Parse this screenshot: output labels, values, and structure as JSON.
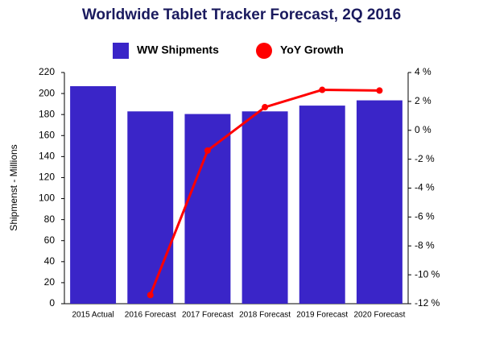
{
  "chart_data": {
    "type": "combo",
    "title": "Worldwide Tablet Tracker Forecast, 2Q 2016",
    "y_label": "Shipmenst - Millions",
    "categories": [
      "2015 Actual",
      "2016 Forecast",
      "2017 Forecast",
      "2018 Forecast",
      "2019 Forecast",
      "2020 Forecast"
    ],
    "series": [
      {
        "name": "WW Shipments",
        "type": "bar",
        "color": "#3a25c8",
        "values": [
          207,
          183,
          180.5,
          183,
          188.5,
          193.5
        ]
      },
      {
        "name": "YoY Growth",
        "type": "line",
        "color": "#ff0000",
        "axis": "y2",
        "values": [
          null,
          -11.4,
          -1.4,
          1.6,
          2.8,
          2.75
        ]
      }
    ],
    "ylim": [
      0,
      220
    ],
    "yticks": [
      0,
      20,
      40,
      60,
      80,
      100,
      120,
      140,
      160,
      180,
      200,
      220
    ],
    "y2lim": [
      -12,
      4
    ],
    "y2ticks": [
      {
        "value": -12,
        "label": "-12 %"
      },
      {
        "value": -10,
        "label": "-10 %"
      },
      {
        "value": -8,
        "label": "-8 %"
      },
      {
        "value": -6,
        "label": "-6 %"
      },
      {
        "value": -4,
        "label": "-4 %"
      },
      {
        "value": -2,
        "label": "-2 %"
      },
      {
        "value": 0,
        "label": "0 %"
      },
      {
        "value": 2,
        "label": "2 %"
      },
      {
        "value": 4,
        "label": "4 %"
      }
    ],
    "legend": "top",
    "grid": false
  }
}
